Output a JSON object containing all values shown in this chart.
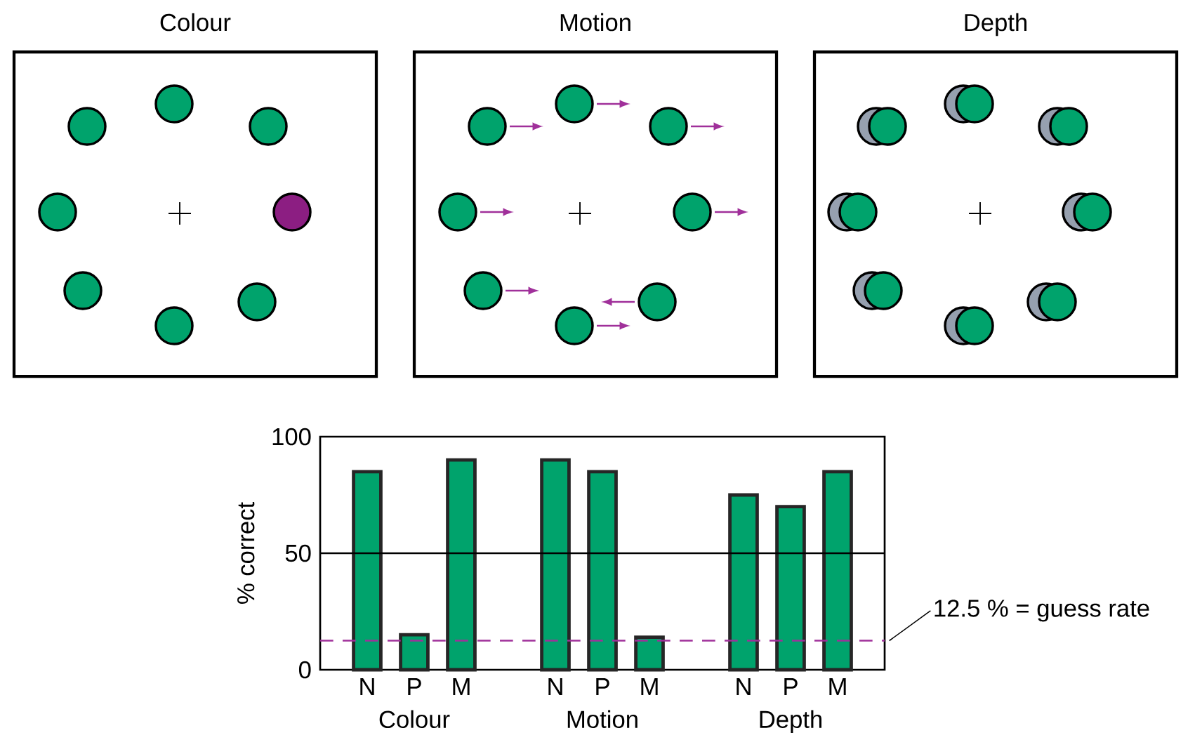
{
  "chart_data": {
    "type": "bar",
    "categories": [
      "N",
      "P",
      "M",
      "N",
      "P",
      "M",
      "N",
      "P",
      "M"
    ],
    "values": [
      85,
      15,
      90,
      90,
      85,
      14,
      75,
      70,
      85
    ],
    "color": "#00a36c",
    "ylabel": "% correct",
    "ylim": [
      0,
      100
    ],
    "yticks": [
      0,
      50,
      100
    ],
    "ref_lines": [
      {
        "axis": "y",
        "value": 50,
        "color": "#000000",
        "line_style": "solid"
      },
      {
        "axis": "y",
        "value": 12.5,
        "label": "12.5 % = guess rate",
        "color": "#a0309a",
        "line_style": "dashed"
      }
    ],
    "annotations": [
      "Colour",
      "Motion",
      "Depth",
      "Colour",
      "Motion",
      "Depth"
    ]
  }
}
